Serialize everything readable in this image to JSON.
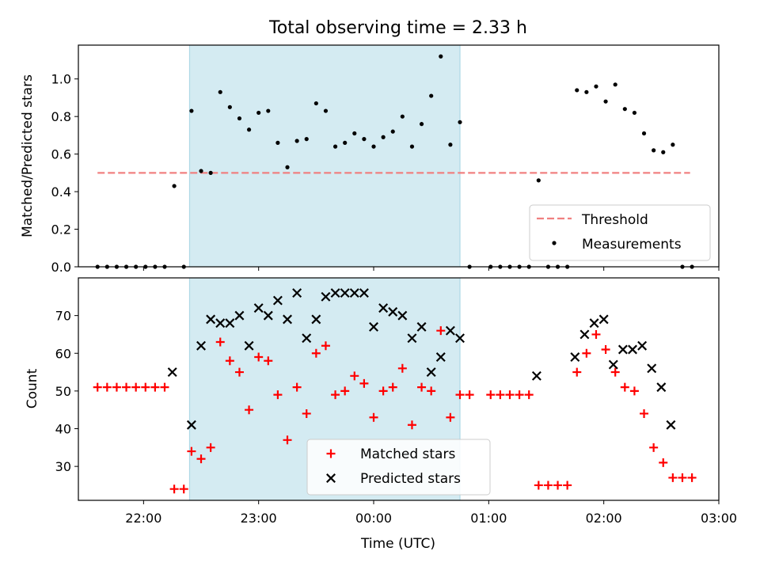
{
  "figure_title": "Total observing time = 2.33 h",
  "colors": {
    "band": "#add8e6",
    "threshold": "#f08080",
    "measurement": "#000000",
    "matched": "#ff0000",
    "predicted": "#000000"
  },
  "chart_data": [
    {
      "type": "scatter",
      "title": "Total observing time = 2.33 h",
      "xlabel": "",
      "ylabel": "Matched/Predicted stars",
      "x_unit": "time of day (UTC), ticks labeled HH:MM",
      "xlim": [
        "21:26",
        "03:00"
      ],
      "ylim": [
        0,
        1.18
      ],
      "yticks": [
        "0.0",
        "0.2",
        "0.4",
        "0.6",
        "0.8",
        "1.0"
      ],
      "shaded_interval": [
        "22:24",
        "00:45"
      ],
      "legend_position": "lower-right",
      "threshold": {
        "name": "Threshold",
        "value": 0.5,
        "range": [
          "21:36",
          "02:45"
        ],
        "style": "dashed"
      },
      "series": [
        {
          "name": "Measurements",
          "x": [
            "21:36",
            "21:41",
            "21:46",
            "21:51",
            "21:56",
            "22:01",
            "22:06",
            "22:11",
            "22:16",
            "22:21",
            "22:25",
            "22:30",
            "22:35",
            "22:40",
            "22:45",
            "22:50",
            "22:55",
            "23:00",
            "23:05",
            "23:10",
            "23:15",
            "23:20",
            "23:25",
            "23:30",
            "23:35",
            "23:40",
            "23:45",
            "23:50",
            "23:55",
            "00:00",
            "00:05",
            "00:10",
            "00:15",
            "00:20",
            "00:25",
            "00:30",
            "00:35",
            "00:40",
            "00:45",
            "00:50",
            "01:01",
            "01:06",
            "01:11",
            "01:16",
            "01:21",
            "01:26",
            "01:31",
            "01:36",
            "01:41",
            "01:46",
            "01:51",
            "01:56",
            "02:01",
            "02:06",
            "02:11",
            "02:16",
            "02:21",
            "02:26",
            "02:31",
            "02:36",
            "02:41",
            "02:46"
          ],
          "y": [
            0,
            0,
            0,
            0,
            0,
            0,
            0,
            0,
            0.43,
            0,
            0.83,
            0.51,
            0.5,
            0.93,
            0.85,
            0.79,
            0.73,
            0.82,
            0.83,
            0.66,
            0.53,
            0.67,
            0.68,
            0.87,
            0.83,
            0.64,
            0.66,
            0.71,
            0.68,
            0.64,
            0.69,
            0.72,
            0.8,
            0.64,
            0.76,
            0.91,
            1.12,
            0.65,
            0.77,
            0,
            0,
            0,
            0,
            0,
            0,
            0.46,
            0,
            0,
            0,
            0.94,
            0.93,
            0.96,
            0.88,
            0.97,
            0.84,
            0.82,
            0.71,
            0.62,
            0.61,
            0.65,
            0,
            0
          ]
        }
      ]
    },
    {
      "type": "scatter",
      "xlabel": "Time (UTC)",
      "ylabel": "Count",
      "x_unit": "time of day (UTC), ticks labeled HH:MM",
      "xlim": [
        "21:26",
        "03:00"
      ],
      "xticks": [
        "22:00",
        "23:00",
        "00:00",
        "01:00",
        "02:00",
        "03:00"
      ],
      "ylim": [
        21,
        80
      ],
      "yticks": [
        "30",
        "40",
        "50",
        "60",
        "70"
      ],
      "shaded_interval": [
        "22:24",
        "00:45"
      ],
      "legend_position": "lower-center",
      "series": [
        {
          "name": "Matched stars",
          "marker": "plus",
          "x": [
            "21:36",
            "21:41",
            "21:46",
            "21:51",
            "21:56",
            "22:01",
            "22:06",
            "22:11",
            "22:16",
            "22:21",
            "22:25",
            "22:30",
            "22:35",
            "22:40",
            "22:45",
            "22:50",
            "22:55",
            "23:00",
            "23:05",
            "23:10",
            "23:15",
            "23:20",
            "23:25",
            "23:30",
            "23:35",
            "23:40",
            "23:45",
            "23:50",
            "23:55",
            "00:00",
            "00:05",
            "00:10",
            "00:15",
            "00:20",
            "00:25",
            "00:30",
            "00:35",
            "00:40",
            "00:45",
            "00:50",
            "01:01",
            "01:06",
            "01:11",
            "01:16",
            "01:21",
            "01:26",
            "01:31",
            "01:36",
            "01:41",
            "01:46",
            "01:51",
            "01:56",
            "02:01",
            "02:06",
            "02:11",
            "02:16",
            "02:21",
            "02:26",
            "02:31",
            "02:36",
            "02:41",
            "02:46"
          ],
          "y": [
            51,
            51,
            51,
            51,
            51,
            51,
            51,
            51,
            24,
            24,
            34,
            32,
            35,
            63,
            58,
            55,
            45,
            59,
            58,
            49,
            37,
            51,
            44,
            60,
            62,
            49,
            50,
            54,
            52,
            43,
            50,
            51,
            56,
            41,
            51,
            50,
            66,
            43,
            49,
            49,
            49,
            49,
            49,
            49,
            49,
            25,
            25,
            25,
            25,
            55,
            60,
            65,
            61,
            55,
            51,
            50,
            44,
            35,
            31,
            27,
            27,
            27
          ]
        },
        {
          "name": "Predicted stars",
          "marker": "x",
          "x": [
            "22:15",
            "22:25",
            "22:30",
            "22:35",
            "22:40",
            "22:45",
            "22:50",
            "22:55",
            "23:00",
            "23:05",
            "23:10",
            "23:15",
            "23:20",
            "23:25",
            "23:30",
            "23:35",
            "23:40",
            "23:45",
            "23:50",
            "23:55",
            "00:00",
            "00:05",
            "00:10",
            "00:15",
            "00:20",
            "00:25",
            "00:30",
            "00:35",
            "00:40",
            "00:45",
            "01:25",
            "01:45",
            "01:50",
            "01:55",
            "02:00",
            "02:05",
            "02:10",
            "02:15",
            "02:20",
            "02:25",
            "02:30",
            "02:35"
          ],
          "y": [
            55,
            41,
            62,
            69,
            68,
            68,
            70,
            62,
            72,
            70,
            74,
            69,
            76,
            64,
            69,
            75,
            76,
            76,
            76,
            76,
            67,
            72,
            71,
            70,
            64,
            67,
            55,
            59,
            66,
            64,
            54,
            59,
            65,
            68,
            69,
            57,
            61,
            61,
            62,
            56,
            51,
            41
          ]
        }
      ]
    }
  ]
}
